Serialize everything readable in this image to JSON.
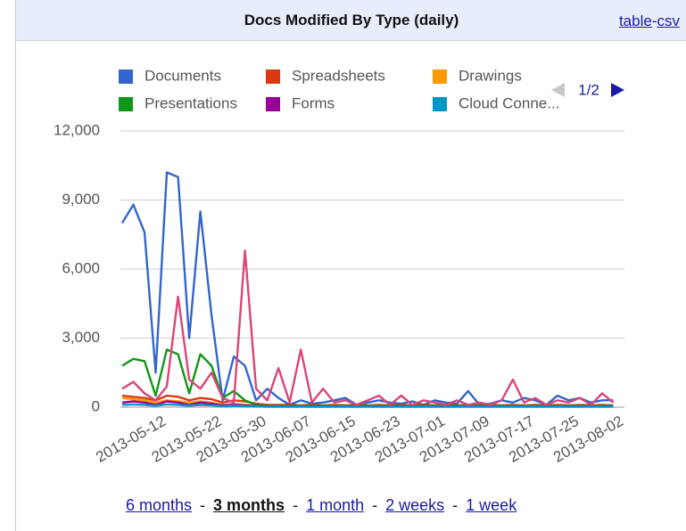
{
  "header": {
    "links": [
      "table",
      "csv"
    ],
    "separator": "-"
  },
  "chart_data": {
    "type": "line",
    "title": "Docs Modified By Type (daily)",
    "legend_page": "1/2",
    "x": [
      "2013-05-05",
      "2013-05-07",
      "2013-05-09",
      "2013-05-11",
      "2013-05-13",
      "2013-05-15",
      "2013-05-17",
      "2013-05-19",
      "2013-05-21",
      "2013-05-23",
      "2013-05-25",
      "2013-05-27",
      "2013-05-29",
      "2013-05-31",
      "2013-06-02",
      "2013-06-04",
      "2013-06-06",
      "2013-06-08",
      "2013-06-10",
      "2013-06-12",
      "2013-06-14",
      "2013-06-16",
      "2013-06-18",
      "2013-06-20",
      "2013-06-22",
      "2013-06-24",
      "2013-06-26",
      "2013-06-28",
      "2013-06-30",
      "2013-07-02",
      "2013-07-04",
      "2013-07-06",
      "2013-07-08",
      "2013-07-10",
      "2013-07-12",
      "2013-07-14",
      "2013-07-16",
      "2013-07-18",
      "2013-07-20",
      "2013-07-22",
      "2013-07-24",
      "2013-07-26",
      "2013-07-28",
      "2013-07-30",
      "2013-08-01"
    ],
    "xlim": [
      "2013-05-05",
      "2013-08-03"
    ],
    "xticks": [
      "2013-05-12",
      "2013-05-22",
      "2013-05-30",
      "2013-06-07",
      "2013-06-15",
      "2013-06-23",
      "2013-07-01",
      "2013-07-09",
      "2013-07-17",
      "2013-07-25",
      "2013-08-02"
    ],
    "ylim": [
      0,
      12000
    ],
    "yticks": [
      0,
      {
        "value": 3000,
        "label": "3,000"
      },
      {
        "value": 6000,
        "label": "6,000"
      },
      {
        "value": 9000,
        "label": "9,000"
      },
      {
        "value": 12000,
        "label": "12,000"
      }
    ],
    "grid": true,
    "series": [
      {
        "name": "Documents",
        "color": "#3366cc",
        "values": [
          8000,
          8800,
          7600,
          1500,
          10200,
          10000,
          3000,
          8500,
          4000,
          300,
          2200,
          1800,
          300,
          800,
          400,
          100,
          300,
          150,
          200,
          300,
          400,
          100,
          200,
          300,
          200,
          150,
          250,
          100,
          300,
          200,
          150,
          700,
          100,
          150,
          300,
          200,
          400,
          300,
          100,
          500,
          300,
          400,
          200,
          300,
          300
        ]
      },
      {
        "name": "Spreadsheets",
        "color": "#dc3912",
        "values": [
          500,
          450,
          400,
          300,
          500,
          450,
          300,
          400,
          350,
          200,
          300,
          250,
          150,
          100,
          100,
          100,
          80,
          100,
          80,
          100,
          80,
          100,
          80,
          100,
          80,
          100,
          80,
          100,
          80,
          100,
          80,
          100,
          80,
          100,
          80,
          100,
          80,
          100,
          80,
          100,
          80,
          100,
          80,
          100,
          80
        ]
      },
      {
        "name": "Drawings",
        "color": "#ff9900",
        "values": [
          400,
          350,
          300,
          200,
          300,
          250,
          200,
          250,
          200,
          100,
          150,
          100,
          80,
          50,
          50,
          50,
          40,
          50,
          40,
          50,
          40,
          50,
          40,
          50,
          40,
          50,
          40,
          50,
          40,
          50,
          40,
          50,
          40,
          50,
          40,
          50,
          40,
          50,
          40,
          50,
          40,
          50,
          40,
          50,
          40
        ]
      },
      {
        "name": "Presentations",
        "color": "#109618",
        "values": [
          1800,
          2100,
          2000,
          500,
          2500,
          2300,
          600,
          2300,
          1800,
          400,
          700,
          300,
          100,
          50,
          60,
          50,
          60,
          50,
          60,
          50,
          60,
          50,
          60,
          50,
          60,
          50,
          60,
          50,
          60,
          50,
          60,
          50,
          60,
          50,
          60,
          50,
          60,
          50,
          60,
          50,
          60,
          50,
          60,
          50,
          60
        ]
      },
      {
        "name": "Forms",
        "color": "#990099",
        "values": [
          200,
          250,
          200,
          100,
          250,
          200,
          100,
          200,
          150,
          80,
          100,
          80,
          50,
          30,
          30,
          30,
          30,
          30,
          30,
          30,
          30,
          30,
          30,
          30,
          30,
          30,
          30,
          30,
          30,
          30,
          30,
          30,
          30,
          30,
          30,
          30,
          30,
          30,
          30,
          30,
          30,
          30,
          30,
          30,
          30
        ]
      },
      {
        "name": "Cloud Conne...",
        "color": "#0099c6",
        "values": [
          100,
          120,
          100,
          60,
          120,
          100,
          60,
          100,
          80,
          40,
          60,
          40,
          30,
          20,
          20,
          20,
          20,
          20,
          20,
          20,
          20,
          20,
          20,
          20,
          20,
          20,
          20,
          20,
          20,
          20,
          20,
          20,
          20,
          20,
          20,
          20,
          20,
          20,
          20,
          20,
          20,
          20,
          20,
          20,
          20
        ]
      },
      {
        "color": "#dd4477",
        "values": [
          800,
          1100,
          600,
          300,
          900,
          4800,
          1200,
          800,
          1500,
          400,
          200,
          6800,
          800,
          300,
          1700,
          200,
          2500,
          200,
          800,
          200,
          300,
          100,
          300,
          500,
          100,
          500,
          100,
          300,
          200,
          100,
          300,
          100,
          200,
          100,
          300,
          1200,
          200,
          400,
          100,
          300,
          200,
          400,
          100,
          600,
          200
        ]
      }
    ]
  },
  "footer": {
    "ranges": [
      "6 months",
      "3 months",
      "1 month",
      "2 weeks",
      "1 week"
    ],
    "separator": "-"
  }
}
